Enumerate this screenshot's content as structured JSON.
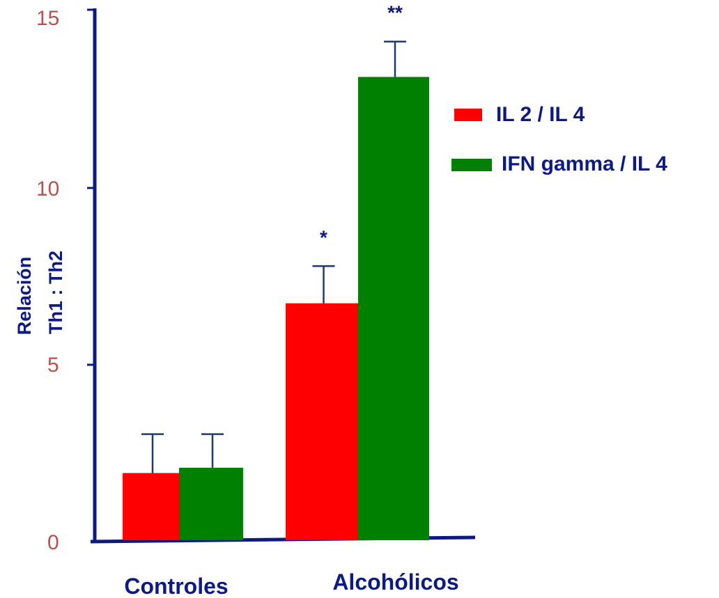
{
  "chart_data": {
    "type": "bar",
    "ylabel": [
      "Relación",
      "Th1 : Th2"
    ],
    "ylim": [
      0,
      15
    ],
    "yticks": [
      "0",
      "5",
      "10",
      "15"
    ],
    "categories": [
      "Controles",
      "Alcohólicos"
    ],
    "series": [
      {
        "name": "IL 2 / IL 4",
        "color": "#ff0000",
        "values": [
          1.9,
          6.7
        ],
        "errors": [
          1.1,
          1.05
        ],
        "significance": [
          "",
          "*"
        ]
      },
      {
        "name": "IFN gamma / IL 4",
        "color": "#008000",
        "values": [
          2.05,
          13.1
        ],
        "errors": [
          0.95,
          1.0
        ],
        "significance": [
          "",
          "**"
        ]
      }
    ],
    "legend_position": "right",
    "grid": false,
    "axis_color": "#0d1a80",
    "tick_color": "#b5524a"
  }
}
